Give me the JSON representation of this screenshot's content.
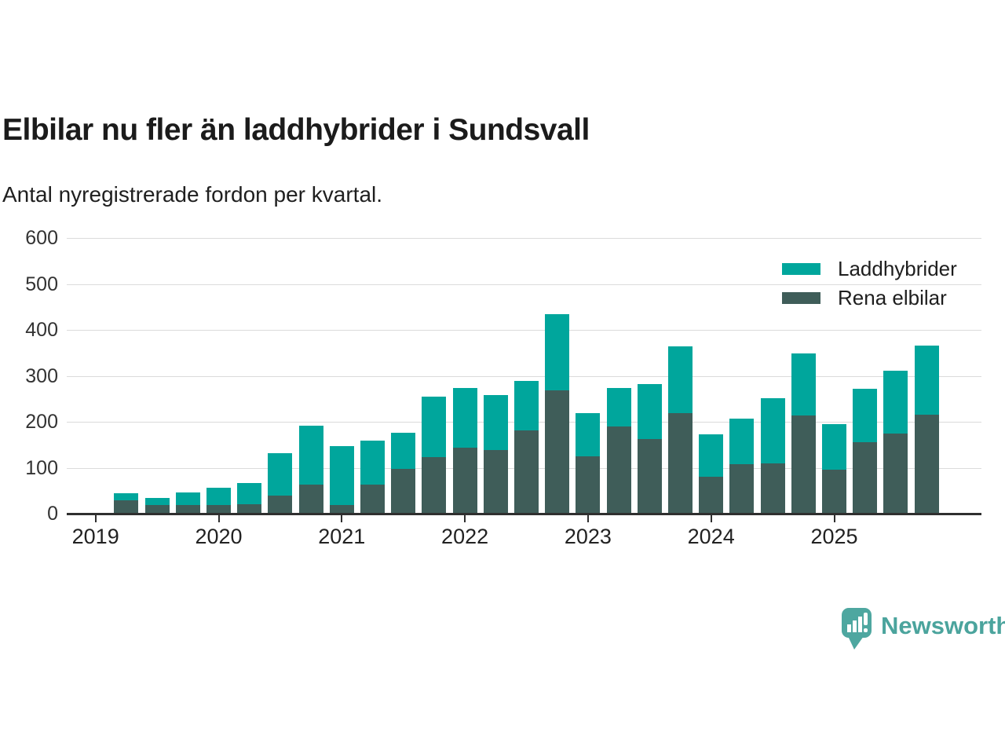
{
  "title": "Elbilar nu fler än laddhybrider i Sundsvall",
  "subtitle": "Antal nyregistrerade fordon per kvartal.",
  "legend": [
    {
      "label": "Laddhybrider",
      "color": "#00a69c"
    },
    {
      "label": "Rena elbilar",
      "color": "#3f5d59"
    }
  ],
  "branding": {
    "name": "Newsworthy",
    "color": "#4ba49d"
  },
  "chart_data": {
    "type": "bar",
    "stacked": true,
    "title": "Elbilar nu fler än laddhybrider i Sundsvall",
    "subtitle": "Antal nyregistrerade fordon per kvartal.",
    "x": [
      "2019 Q2",
      "2019 Q3",
      "2019 Q4",
      "2020 Q1",
      "2020 Q2",
      "2020 Q3",
      "2020 Q4",
      "2021 Q1",
      "2021 Q2",
      "2021 Q3",
      "2021 Q4",
      "2022 Q1",
      "2022 Q2",
      "2022 Q3",
      "2022 Q4",
      "2023 Q1",
      "2023 Q2",
      "2023 Q3",
      "2023 Q4",
      "2024 Q1",
      "2024 Q2",
      "2024 Q3",
      "2024 Q4",
      "2025 Q1",
      "2025 Q2",
      "2025 Q3",
      "2025 Q4"
    ],
    "series": [
      {
        "name": "Rena elbilar",
        "color": "#3f5d59",
        "values": [
          29,
          19,
          18,
          19,
          21,
          39,
          64,
          19,
          64,
          97,
          123,
          143,
          138,
          182,
          269,
          124,
          190,
          162,
          219,
          80,
          107,
          109,
          214,
          95,
          155,
          175,
          215
        ]
      },
      {
        "name": "Laddhybrider",
        "color": "#00a69c",
        "values": [
          16,
          15,
          28,
          37,
          46,
          93,
          127,
          128,
          95,
          79,
          132,
          131,
          120,
          107,
          166,
          95,
          83,
          120,
          145,
          93,
          100,
          142,
          135,
          100,
          117,
          136,
          151
        ]
      }
    ],
    "ylim": [
      0,
      600
    ],
    "yticks": [
      0,
      100,
      200,
      300,
      400,
      500,
      600
    ],
    "xticks": [
      "2019",
      "2020",
      "2021",
      "2022",
      "2023",
      "2024",
      "2025"
    ],
    "grid": true,
    "legend_position": "top-right"
  }
}
